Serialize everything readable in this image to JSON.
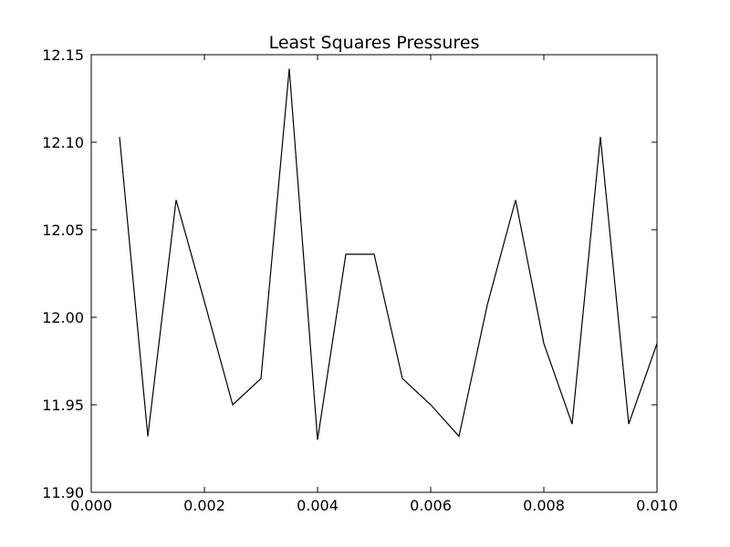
{
  "chart_data": {
    "type": "line",
    "title": "Least Squares Pressures",
    "xlabel": "",
    "ylabel": "",
    "xlim": [
      0.0,
      0.01
    ],
    "ylim": [
      11.9,
      12.15
    ],
    "grid": false,
    "xticks": [
      0.0,
      0.002,
      0.004,
      0.006,
      0.008,
      0.01
    ],
    "xtick_labels": [
      "0.000",
      "0.002",
      "0.004",
      "0.006",
      "0.008",
      "0.010"
    ],
    "yticks": [
      11.9,
      11.95,
      12.0,
      12.05,
      12.1,
      12.15
    ],
    "ytick_labels": [
      "11.90",
      "11.95",
      "12.00",
      "12.05",
      "12.10",
      "12.15"
    ],
    "series": [
      {
        "color": "#000000",
        "x": [
          0.0005,
          0.001,
          0.0015,
          0.002,
          0.0025,
          0.003,
          0.0035,
          0.004,
          0.0045,
          0.005,
          0.0055,
          0.006,
          0.0065,
          0.007,
          0.0075,
          0.008,
          0.0085,
          0.009,
          0.0095,
          0.01
        ],
        "y": [
          12.103,
          11.932,
          12.067,
          12.009,
          11.95,
          11.965,
          12.142,
          11.93,
          12.036,
          12.036,
          11.965,
          11.95,
          11.932,
          12.007,
          12.067,
          11.985,
          11.939,
          12.103,
          11.939,
          11.985
        ]
      }
    ]
  }
}
